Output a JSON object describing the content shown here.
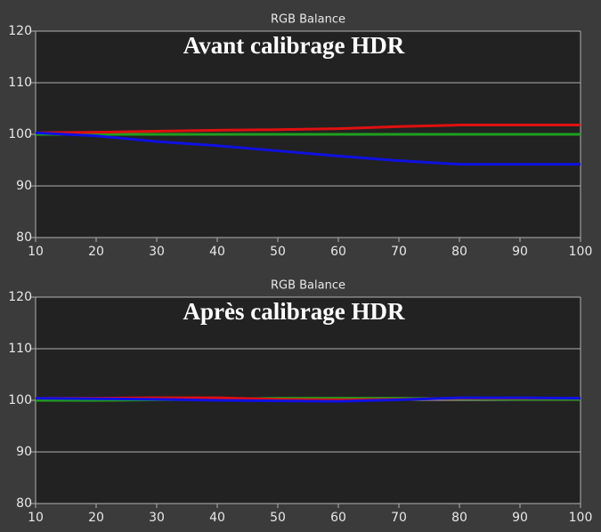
{
  "chart_data": [
    {
      "type": "line",
      "title": "RGB Balance",
      "annotation": "Avant calibrage HDR",
      "x": [
        10,
        20,
        30,
        40,
        50,
        60,
        70,
        80,
        90,
        100
      ],
      "xlim": [
        10,
        100
      ],
      "xticks": [
        10,
        20,
        30,
        40,
        50,
        60,
        70,
        80,
        90,
        100
      ],
      "ylim": [
        80,
        120
      ],
      "yticks": [
        80,
        90,
        100,
        110,
        120
      ],
      "grid": true,
      "series": [
        {
          "color": "#1fa01f",
          "values": [
            100,
            100,
            100,
            100,
            100,
            100,
            100,
            100,
            100,
            100
          ]
        },
        {
          "color": "#e01010",
          "values": [
            100.3,
            100.4,
            100.6,
            100.8,
            100.9,
            101.1,
            101.5,
            101.8,
            101.8,
            101.8
          ]
        },
        {
          "color": "#1010e0",
          "values": [
            100.3,
            99.7,
            98.6,
            97.8,
            96.8,
            95.8,
            94.9,
            94.2,
            94.2,
            94.2
          ]
        }
      ]
    },
    {
      "type": "line",
      "title": "RGB Balance",
      "annotation": "Après calibrage HDR",
      "x": [
        10,
        20,
        30,
        40,
        50,
        60,
        70,
        80,
        90,
        100
      ],
      "xlim": [
        10,
        100
      ],
      "xticks": [
        10,
        20,
        30,
        40,
        50,
        60,
        70,
        80,
        90,
        100
      ],
      "ylim": [
        80,
        120
      ],
      "yticks": [
        80,
        90,
        100,
        110,
        120
      ],
      "grid": true,
      "series": [
        {
          "color": "#1fa01f",
          "values": [
            100,
            100,
            100.1,
            100.2,
            100.4,
            100.4,
            100.4,
            100.3,
            100.2,
            100.2
          ]
        },
        {
          "color": "#e01010",
          "values": [
            100.4,
            100.4,
            100.5,
            100.5,
            100.2,
            100.1,
            100.2,
            100.4,
            100.4,
            100.4
          ]
        },
        {
          "color": "#1010e0",
          "values": [
            100.4,
            100.3,
            100.2,
            100.0,
            99.9,
            99.8,
            100.1,
            100.5,
            100.5,
            100.4
          ]
        }
      ]
    }
  ]
}
